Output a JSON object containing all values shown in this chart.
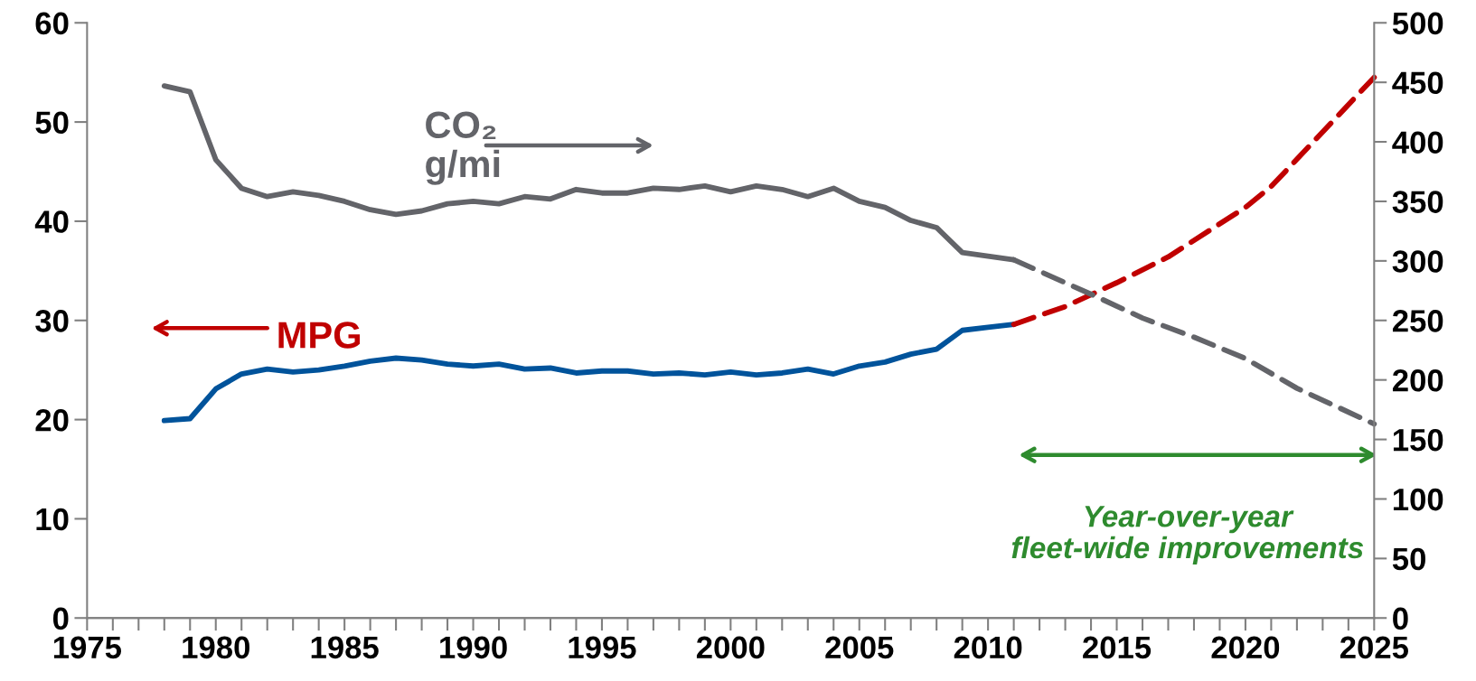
{
  "chart_data": {
    "type": "line",
    "xlim": [
      1975,
      2025
    ],
    "xticks": [
      1975,
      {
        "value": 1976,
        "label": null
      },
      {
        "value": 1977,
        "label": null
      },
      {
        "value": 1978,
        "label": null
      },
      {
        "value": 1979,
        "label": null
      },
      1980,
      {
        "value": 1981,
        "label": null
      },
      {
        "value": 1982,
        "label": null
      },
      {
        "value": 1983,
        "label": null
      },
      {
        "value": 1984,
        "label": null
      },
      1985,
      {
        "value": 1986,
        "label": null
      },
      {
        "value": 1987,
        "label": null
      },
      {
        "value": 1988,
        "label": null
      },
      {
        "value": 1989,
        "label": null
      },
      1990,
      {
        "value": 1991,
        "label": null
      },
      {
        "value": 1992,
        "label": null
      },
      {
        "value": 1993,
        "label": null
      },
      {
        "value": 1994,
        "label": null
      },
      1995,
      {
        "value": 1996,
        "label": null
      },
      {
        "value": 1997,
        "label": null
      },
      {
        "value": 1998,
        "label": null
      },
      {
        "value": 1999,
        "label": null
      },
      2000,
      {
        "value": 2001,
        "label": null
      },
      {
        "value": 2002,
        "label": null
      },
      {
        "value": 2003,
        "label": null
      },
      {
        "value": 2004,
        "label": null
      },
      2005,
      {
        "value": 2006,
        "label": null
      },
      {
        "value": 2007,
        "label": null
      },
      {
        "value": 2008,
        "label": null
      },
      {
        "value": 2009,
        "label": null
      },
      2010,
      {
        "value": 2011,
        "label": null
      },
      {
        "value": 2012,
        "label": null
      },
      {
        "value": 2013,
        "label": null
      },
      {
        "value": 2014,
        "label": null
      },
      2015,
      {
        "value": 2016,
        "label": null
      },
      {
        "value": 2017,
        "label": null
      },
      {
        "value": 2018,
        "label": null
      },
      {
        "value": 2019,
        "label": null
      },
      2020,
      {
        "value": 2021,
        "label": null
      },
      {
        "value": 2022,
        "label": null
      },
      {
        "value": 2023,
        "label": null
      },
      {
        "value": 2024,
        "label": null
      },
      2025
    ],
    "ylim": [
      0,
      60
    ],
    "yticks": [
      0,
      10,
      20,
      30,
      40,
      50,
      60
    ],
    "y2lim": [
      0,
      500
    ],
    "y2ticks": [
      0,
      50,
      100,
      150,
      200,
      250,
      300,
      350,
      400,
      450,
      500
    ],
    "grid": false,
    "legend": false,
    "marker": "none",
    "series": [
      {
        "color": "#00539b",
        "line_style": "solid",
        "x": [
          1978,
          1979,
          1980,
          1981,
          1982,
          1983,
          1984,
          1985,
          1986,
          1987,
          1988,
          1989,
          1990,
          1991,
          1992,
          1993,
          1994,
          1995,
          1996,
          1997,
          1998,
          1999,
          2000,
          2001,
          2002,
          2003,
          2004,
          2005,
          2006,
          2007,
          2008,
          2009,
          2010,
          2011
        ],
        "values": [
          19.9,
          20.1,
          23.1,
          24.6,
          25.1,
          24.8,
          25.0,
          25.4,
          25.9,
          26.2,
          26.0,
          25.6,
          25.4,
          25.6,
          25.1,
          25.2,
          24.7,
          24.9,
          24.9,
          24.6,
          24.7,
          24.5,
          24.8,
          24.5,
          24.7,
          25.1,
          24.6,
          25.4,
          25.8,
          26.6,
          27.1,
          29.0,
          29.3,
          29.6
        ]
      },
      {
        "color": "#c00000",
        "line_style": "dashed",
        "x": [
          2011,
          2013,
          2015,
          2017,
          2020,
          2021,
          2025
        ],
        "values": [
          29.6,
          31.4,
          33.8,
          36.4,
          41.4,
          43.5,
          54.5
        ]
      },
      {
        "color": "#636469",
        "line_style": "solid",
        "axis": "y2",
        "x": [
          1978,
          1979,
          1980,
          1981,
          1982,
          1983,
          1984,
          1985,
          1986,
          1987,
          1988,
          1989,
          1990,
          1991,
          1992,
          1993,
          1994,
          1995,
          1996,
          1997,
          1998,
          1999,
          2000,
          2001,
          2002,
          2003,
          2004,
          2005,
          2006,
          2007,
          2008,
          2009,
          2010,
          2011
        ],
        "values": [
          447,
          442,
          385,
          361,
          354,
          358,
          355,
          350,
          343,
          339,
          342,
          348,
          350,
          348,
          354,
          352,
          360,
          357,
          357,
          361,
          360,
          363,
          358,
          363,
          360,
          354,
          361,
          350,
          345,
          334,
          328,
          307,
          304,
          301
        ]
      },
      {
        "color": "#636469",
        "line_style": "dashed",
        "axis": "y2",
        "x": [
          2011,
          2014,
          2016,
          2018,
          2020,
          2022,
          2025
        ],
        "values": [
          301,
          272,
          252,
          236,
          218,
          193,
          163
        ]
      }
    ],
    "annotations": [
      "CO₂\ng/mi",
      "MPG",
      "Year-over-year\nfleet-wide improvements"
    ]
  }
}
